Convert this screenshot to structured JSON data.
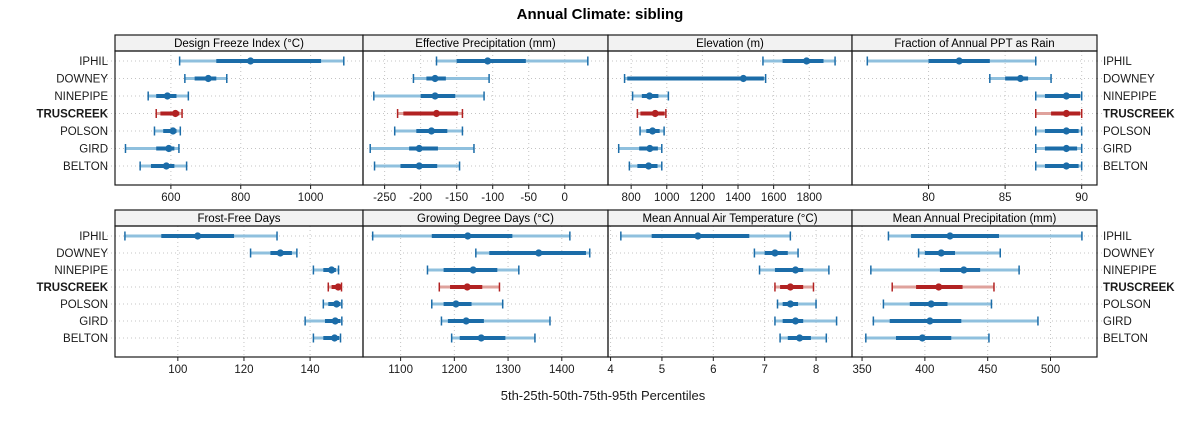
{
  "chart_data": {
    "type": "dot-whisker-percentile-trellis",
    "title": "Annual Climate: sibling",
    "caption": "5th-25th-50th-75th-95th Percentiles",
    "percentiles": [
      5,
      25,
      50,
      75,
      95
    ],
    "stations": [
      "IPHIL",
      "DOWNEY",
      "NINEPIPE",
      "TRUSCREEK",
      "POLSON",
      "GIRD",
      "BELTON"
    ],
    "highlight_station": "TRUSCREEK",
    "legend_position": "none",
    "grid": "dotted",
    "colors": {
      "dark_blue": "#1B6CA8",
      "light_blue": "#8FC0DE",
      "dark_red": "#B22222",
      "light_red": "#DFA29C",
      "strip_bg": "#F2F2F2",
      "border": "#1A1A1A",
      "gridline": "#C4C4C4",
      "text": "#1A1A1A"
    },
    "panels": [
      {
        "id": "design_freeze_index",
        "title": "Design Freeze Index (°C)",
        "row": 0,
        "col": 0,
        "xlim": [
          440,
          1150
        ],
        "ticks": [
          600,
          800,
          1000
        ],
        "series": {
          "IPHIL": [
            625,
            730,
            828,
            1030,
            1095
          ],
          "DOWNEY": [
            640,
            668,
            707,
            730,
            760
          ],
          "NINEPIPE": [
            535,
            558,
            590,
            616,
            650
          ],
          "TRUSCREEK": [
            558,
            570,
            613,
            624,
            632
          ],
          "POLSON": [
            553,
            578,
            606,
            616,
            627
          ],
          "GIRD": [
            470,
            558,
            594,
            610,
            623
          ],
          "BELTON": [
            512,
            543,
            587,
            610,
            645
          ]
        }
      },
      {
        "id": "effective_precipitation",
        "title": "Effective Precipitation (mm)",
        "row": 0,
        "col": 1,
        "xlim": [
          -280,
          60
        ],
        "ticks": [
          -250,
          -200,
          -150,
          -100,
          -50,
          0
        ],
        "series": {
          "IPHIL": [
            -178,
            -150,
            -107,
            -54,
            32
          ],
          "DOWNEY": [
            -210,
            -192,
            -180,
            -165,
            -105
          ],
          "NINEPIPE": [
            -265,
            -200,
            -180,
            -152,
            -112
          ],
          "TRUSCREEK": [
            -232,
            -224,
            -178,
            -148,
            -142
          ],
          "POLSON": [
            -236,
            -206,
            -185,
            -163,
            -142
          ],
          "GIRD": [
            -270,
            -216,
            -202,
            -176,
            -126
          ],
          "BELTON": [
            -264,
            -228,
            -202,
            -177,
            -146
          ]
        }
      },
      {
        "id": "elevation",
        "title": "Elevation (m)",
        "row": 0,
        "col": 2,
        "xlim": [
          670,
          2040
        ],
        "ticks": [
          800,
          1000,
          1200,
          1400,
          1600,
          1800
        ],
        "series": {
          "IPHIL": [
            1540,
            1650,
            1785,
            1880,
            1945
          ],
          "DOWNEY": [
            763,
            778,
            1430,
            1545,
            1555
          ],
          "NINEPIPE": [
            808,
            860,
            903,
            953,
            1009
          ],
          "TRUSCREEK": [
            835,
            852,
            935,
            988,
            995
          ],
          "POLSON": [
            850,
            885,
            920,
            960,
            985
          ],
          "GIRD": [
            730,
            845,
            905,
            950,
            972
          ],
          "BELTON": [
            790,
            835,
            898,
            948,
            972
          ]
        }
      },
      {
        "id": "fraction_annual_ppt_as_rain",
        "title": "Fraction of Annual PPT as Rain",
        "row": 0,
        "col": 3,
        "xlim": [
          75,
          91
        ],
        "ticks": [
          80,
          85,
          90
        ],
        "series": {
          "IPHIL": [
            76,
            80,
            82,
            84,
            87
          ],
          "DOWNEY": [
            84,
            85,
            86,
            86.5,
            88
          ],
          "NINEPIPE": [
            87,
            87.6,
            89,
            89.9,
            90
          ],
          "TRUSCREEK": [
            87,
            88,
            89,
            89.9,
            90
          ],
          "POLSON": [
            87,
            87.6,
            89,
            89.8,
            90
          ],
          "GIRD": [
            87,
            87.6,
            89,
            89.7,
            90
          ],
          "BELTON": [
            87,
            87.6,
            89,
            89.8,
            90
          ]
        }
      },
      {
        "id": "frost_free_days",
        "title": "Frost-Free Days",
        "row": 1,
        "col": 0,
        "xlim": [
          81,
          156
        ],
        "ticks": [
          100,
          120,
          140
        ],
        "series": {
          "IPHIL": [
            84,
            95,
            106,
            117,
            130
          ],
          "DOWNEY": [
            122,
            128,
            131,
            134.5,
            136
          ],
          "NINEPIPE": [
            141,
            144,
            146.5,
            147.8,
            148.6
          ],
          "TRUSCREEK": [
            145.5,
            146.5,
            148.5,
            149.3,
            149.5
          ],
          "POLSON": [
            144,
            145.5,
            148,
            149.2,
            149.6
          ],
          "GIRD": [
            138.5,
            144.5,
            147.6,
            149.2,
            149.6
          ],
          "BELTON": [
            141,
            144,
            147.4,
            148.8,
            149.2
          ]
        }
      },
      {
        "id": "growing_degree_days",
        "title": "Growing Degree Days (°C)",
        "row": 1,
        "col": 1,
        "xlim": [
          1030,
          1486
        ],
        "ticks": [
          1100,
          1200,
          1300,
          1400
        ],
        "series": {
          "IPHIL": [
            1048,
            1158,
            1225,
            1308,
            1415
          ],
          "DOWNEY": [
            1240,
            1265,
            1357,
            1445,
            1452
          ],
          "NINEPIPE": [
            1150,
            1180,
            1235,
            1280,
            1320
          ],
          "TRUSCREEK": [
            1172,
            1192,
            1224,
            1252,
            1284
          ],
          "POLSON": [
            1158,
            1180,
            1203,
            1232,
            1290
          ],
          "GIRD": [
            1176,
            1188,
            1222,
            1255,
            1378
          ],
          "BELTON": [
            1195,
            1210,
            1250,
            1295,
            1350
          ]
        }
      },
      {
        "id": "mean_annual_air_temperature",
        "title": "Mean Annual Air Temperature (°C)",
        "row": 1,
        "col": 2,
        "xlim": [
          3.95,
          8.7
        ],
        "ticks": [
          4,
          5,
          6,
          7,
          8
        ],
        "series": {
          "IPHIL": [
            4.2,
            4.8,
            5.7,
            6.7,
            7.5
          ],
          "DOWNEY": [
            6.8,
            7.0,
            7.2,
            7.45,
            7.65
          ],
          "NINEPIPE": [
            6.9,
            7.2,
            7.6,
            7.75,
            8.25
          ],
          "TRUSCREEK": [
            7.2,
            7.3,
            7.5,
            7.75,
            7.95
          ],
          "POLSON": [
            7.25,
            7.35,
            7.5,
            7.65,
            8.0
          ],
          "GIRD": [
            7.2,
            7.35,
            7.6,
            7.75,
            8.4
          ],
          "BELTON": [
            7.3,
            7.45,
            7.68,
            7.9,
            8.2
          ]
        }
      },
      {
        "id": "mean_annual_precipitation",
        "title": "Mean Annual Precipitation (mm)",
        "row": 1,
        "col": 3,
        "xlim": [
          342,
          537
        ],
        "ticks": [
          350,
          400,
          450,
          500
        ],
        "series": {
          "IPHIL": [
            371,
            389,
            420,
            459,
            525
          ],
          "DOWNEY": [
            395,
            400,
            413,
            424,
            460
          ],
          "NINEPIPE": [
            357,
            412,
            431,
            444,
            475
          ],
          "TRUSCREEK": [
            374,
            393,
            411,
            430,
            455
          ],
          "POLSON": [
            367,
            388,
            405,
            418,
            453
          ],
          "GIRD": [
            359,
            372,
            404,
            429,
            490
          ],
          "BELTON": [
            353,
            377,
            398,
            421,
            451
          ]
        }
      }
    ]
  }
}
